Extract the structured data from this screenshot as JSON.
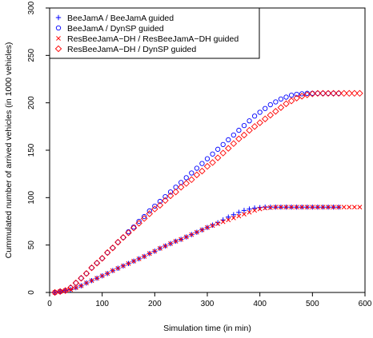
{
  "chart_data": {
    "type": "scatter",
    "xlabel": "Simulation time (in min)",
    "ylabel": "Cummulated number of arrived vehicles (in 1000 vehicles)",
    "xlim": [
      0,
      600
    ],
    "ylim": [
      0,
      300
    ],
    "x_ticks": [
      "0",
      "100",
      "200",
      "300",
      "400",
      "500",
      "600"
    ],
    "y_ticks": [
      "0",
      "50",
      "100",
      "150",
      "200",
      "250",
      "300"
    ],
    "grid": false,
    "legend_position": "top-left",
    "series": [
      {
        "name": "BeeJamA / BeeJamA guided",
        "marker": "plus",
        "color": "#0000ff",
        "x": [
          10,
          20,
          30,
          40,
          50,
          60,
          70,
          80,
          90,
          100,
          110,
          120,
          130,
          140,
          150,
          160,
          170,
          180,
          190,
          200,
          210,
          220,
          230,
          240,
          250,
          260,
          270,
          280,
          290,
          300,
          310,
          320,
          330,
          340,
          350,
          360,
          370,
          380,
          390,
          400,
          410,
          420,
          430,
          440,
          450,
          460,
          470,
          480,
          490,
          500,
          510,
          520,
          530,
          540,
          550
        ],
        "y": [
          0,
          1,
          2,
          3,
          5,
          7,
          10,
          12.5,
          15,
          17.5,
          20,
          23,
          25.5,
          28,
          30.5,
          33,
          35.5,
          38,
          41,
          43.5,
          46.5,
          49,
          51.5,
          54,
          56,
          58.5,
          61,
          63.5,
          66,
          68.5,
          71,
          73.5,
          76.5,
          79.5,
          82,
          84.5,
          86.5,
          88,
          89,
          89.5,
          90,
          90,
          90,
          90,
          90,
          90,
          90,
          90,
          90,
          90,
          90,
          90,
          90,
          90,
          90
        ]
      },
      {
        "name": "BeeJamA / DynSP guided",
        "marker": "circle",
        "color": "#0000ff",
        "x": [
          10,
          20,
          30,
          40,
          50,
          60,
          70,
          80,
          90,
          100,
          110,
          120,
          130,
          140,
          150,
          160,
          170,
          180,
          190,
          200,
          210,
          220,
          230,
          240,
          250,
          260,
          270,
          280,
          290,
          300,
          310,
          320,
          330,
          340,
          350,
          360,
          370,
          380,
          390,
          400,
          410,
          420,
          430,
          440,
          450,
          460,
          470,
          480,
          490,
          500,
          510,
          520,
          530,
          540,
          550
        ],
        "y": [
          0,
          1,
          2,
          5,
          10,
          15,
          20,
          26,
          31,
          36,
          42,
          47,
          53,
          58,
          64,
          69,
          75,
          80,
          86,
          91,
          96,
          101,
          106,
          111,
          116,
          121,
          126,
          131,
          136,
          141,
          146,
          151,
          156,
          161,
          166,
          171,
          176,
          181,
          186,
          190,
          194,
          198,
          201,
          204,
          206,
          208,
          209,
          209.5,
          210,
          210,
          210,
          210,
          210,
          210,
          210
        ]
      },
      {
        "name": "ResBeeJamA−DH / ResBeeJamA−DH guided",
        "marker": "cross",
        "color": "#ff0000",
        "x": [
          10,
          20,
          30,
          40,
          50,
          60,
          70,
          80,
          90,
          100,
          110,
          120,
          130,
          140,
          150,
          160,
          170,
          180,
          190,
          200,
          210,
          220,
          230,
          240,
          250,
          260,
          270,
          280,
          290,
          300,
          310,
          320,
          330,
          340,
          350,
          360,
          370,
          380,
          390,
          400,
          410,
          420,
          430,
          440,
          450,
          460,
          470,
          480,
          490,
          500,
          510,
          520,
          530,
          540,
          550,
          560,
          570,
          580,
          590
        ],
        "y": [
          0,
          1,
          2,
          3,
          5,
          7,
          10,
          12.5,
          15,
          17.5,
          20,
          23,
          25.5,
          28,
          30.5,
          33,
          35.5,
          38,
          41,
          43.5,
          46.5,
          49,
          51.5,
          54,
          56,
          58.5,
          61,
          63.5,
          66,
          68.5,
          70.5,
          72.5,
          74.5,
          76.5,
          78.5,
          80.5,
          82.5,
          84.5,
          86.5,
          88,
          89,
          89.5,
          90,
          90,
          90,
          90,
          90,
          90,
          90,
          90,
          90,
          90,
          90,
          90,
          90,
          90,
          90,
          90,
          90
        ]
      },
      {
        "name": "ResBeeJamA−DH / DynSP guided",
        "marker": "diamond",
        "color": "#ff0000",
        "x": [
          10,
          20,
          30,
          40,
          50,
          60,
          70,
          80,
          90,
          100,
          110,
          120,
          130,
          140,
          150,
          160,
          170,
          180,
          190,
          200,
          210,
          220,
          230,
          240,
          250,
          260,
          270,
          280,
          290,
          300,
          310,
          320,
          330,
          340,
          350,
          360,
          370,
          380,
          390,
          400,
          410,
          420,
          430,
          440,
          450,
          460,
          470,
          480,
          490,
          500,
          510,
          520,
          530,
          540,
          550,
          560,
          570,
          580,
          590
        ],
        "y": [
          0,
          1,
          2,
          5,
          10,
          15,
          20,
          26,
          31,
          36,
          42,
          47,
          53,
          58,
          63,
          68,
          73,
          78,
          83,
          88,
          92,
          97,
          102,
          106,
          111,
          115,
          119,
          124,
          128,
          133,
          137,
          142,
          147,
          152,
          157,
          162,
          166,
          171,
          175,
          179,
          183,
          187,
          191,
          195,
          199,
          202,
          205,
          207,
          208.5,
          209.5,
          210,
          210,
          210,
          210,
          210,
          210,
          210,
          210,
          210
        ]
      }
    ]
  }
}
